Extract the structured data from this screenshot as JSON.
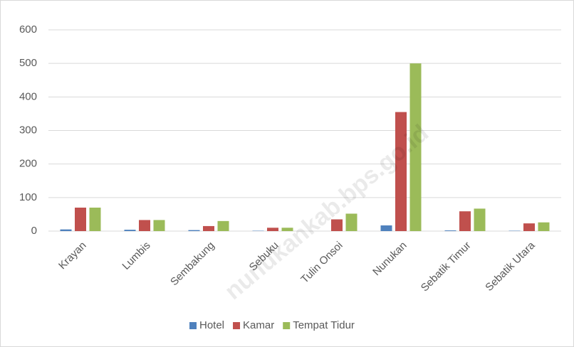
{
  "chart_data": {
    "type": "bar",
    "categories": [
      "Krayan",
      "Lumbis",
      "Sembakung",
      "Sebuku",
      "Tulin Onsoi",
      "Nunukan",
      "Sebatik Timur",
      "Sebatik Utara"
    ],
    "series": [
      {
        "name": "Hotel",
        "color": "#4f81bd",
        "values": [
          5,
          4,
          3,
          1,
          0,
          17,
          2,
          1
        ]
      },
      {
        "name": "Kamar",
        "color": "#c0504d",
        "values": [
          70,
          33,
          15,
          10,
          35,
          355,
          59,
          23
        ]
      },
      {
        "name": "Tempat Tidur",
        "color": "#9bbb59",
        "values": [
          70,
          33,
          30,
          10,
          52,
          500,
          67,
          26
        ]
      }
    ],
    "ylim": [
      0,
      600
    ],
    "yticks": [
      0,
      100,
      200,
      300,
      400,
      500,
      600
    ],
    "grid": true,
    "legend": "bottom",
    "watermark": "nunukankab.bps.go.id"
  }
}
